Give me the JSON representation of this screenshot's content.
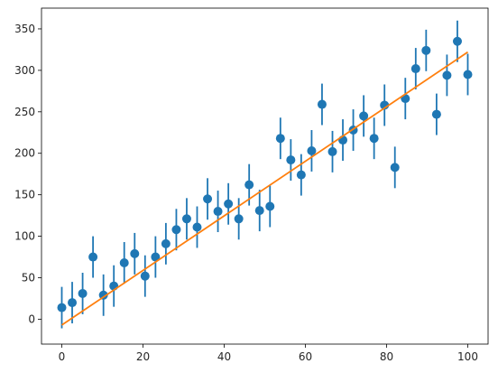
{
  "chart_data": {
    "type": "scatter",
    "title": "",
    "xlabel": "",
    "ylabel": "",
    "xlim": [
      -5,
      105
    ],
    "ylim": [
      -30,
      375
    ],
    "grid": false,
    "x_ticks": [
      0,
      20,
      40,
      60,
      80,
      100
    ],
    "y_ticks": [
      0,
      50,
      100,
      150,
      200,
      250,
      300,
      350
    ],
    "colors": {
      "points": "#1f77b4",
      "fit_line": "#ff7f0e"
    },
    "series": [
      {
        "kind": "errorbar",
        "x": [
          0,
          2.56,
          5.13,
          7.69,
          10.26,
          12.82,
          15.38,
          17.95,
          20.51,
          23.08,
          25.64,
          28.21,
          30.77,
          33.33,
          35.9,
          38.46,
          41.03,
          43.59,
          46.15,
          48.72,
          51.28,
          53.85,
          56.41,
          58.97,
          61.54,
          64.1,
          66.67,
          69.23,
          71.79,
          74.36,
          76.92,
          79.49,
          82.05,
          84.62,
          87.18,
          89.74,
          92.31,
          94.87,
          97.44,
          100
        ],
        "y": [
          14,
          20,
          31,
          75,
          29,
          40,
          68,
          79,
          52,
          75,
          91,
          108,
          121,
          111,
          145,
          130,
          139,
          121,
          162,
          131,
          136,
          218,
          192,
          174,
          203,
          259,
          202,
          216,
          228,
          245,
          218,
          258,
          183,
          266,
          302,
          324,
          247,
          294,
          335,
          295
        ],
        "yerr": 25
      },
      {
        "kind": "line",
        "x": [
          0,
          100
        ],
        "y": [
          -7,
          322
        ]
      }
    ]
  }
}
